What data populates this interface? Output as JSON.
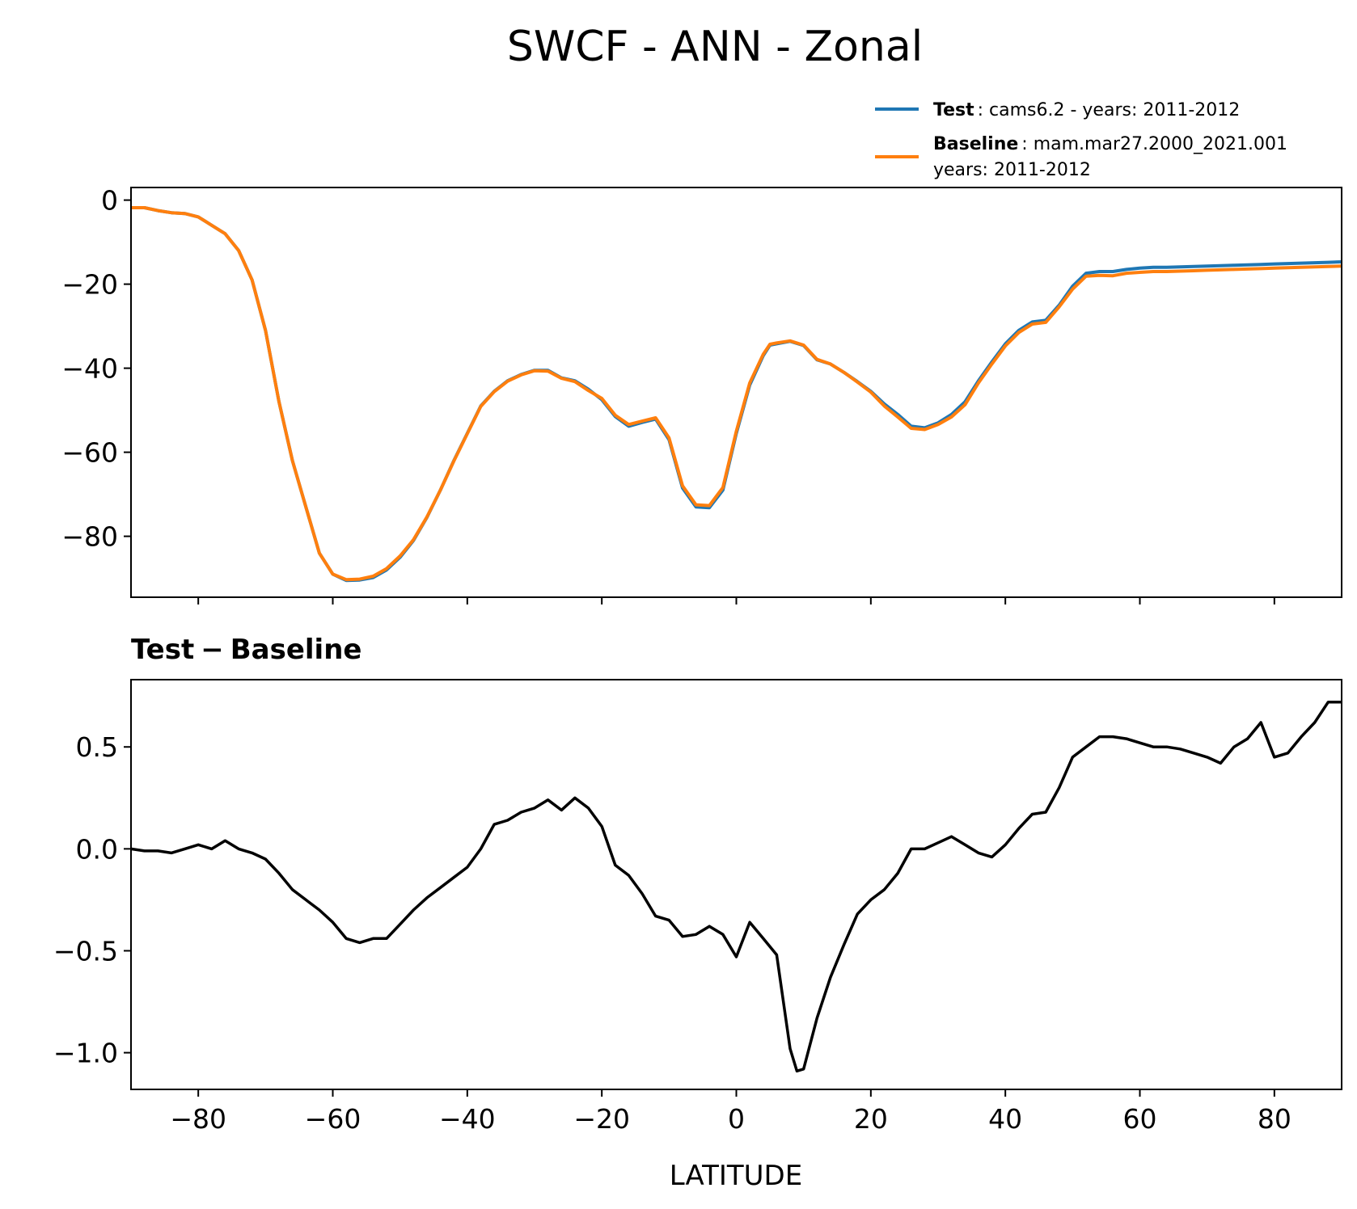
{
  "title": "SWCF - ANN - Zonal",
  "colors": {
    "test": "#1f77b4",
    "baseline": "#ff7f0e",
    "diff": "#000000"
  },
  "legend": {
    "test_name": "Test",
    "test_desc": ": cams6.2 - years: 2011-2012",
    "baseline_name": "Baseline",
    "baseline_desc": ": mam.mar27.2000_2021.001",
    "baseline_years": "years: 2011-2012"
  },
  "lower_title_left": "Test",
  "lower_title_sep": "−",
  "lower_title_right": "Baseline",
  "xlabel": "LATITUDE",
  "chart_data": [
    {
      "type": "line",
      "panel": "upper",
      "xlim": [
        -90,
        90
      ],
      "ylim": [
        -94.5,
        3
      ],
      "xticks": [
        -80,
        -60,
        -40,
        -20,
        0,
        20,
        40,
        60,
        80
      ],
      "yticks": [
        0,
        -20,
        -40,
        -60,
        -80
      ],
      "ytick_labels": [
        "0",
        "−20",
        "−40",
        "−60",
        "−80"
      ],
      "x": [
        -90,
        -88,
        -86,
        -84,
        -82,
        -80,
        -78,
        -76,
        -74,
        -72,
        -70,
        -68,
        -66,
        -64,
        -62,
        -60,
        -58,
        -56,
        -54,
        -52,
        -50,
        -48,
        -46,
        -44,
        -42,
        -40,
        -38,
        -36,
        -34,
        -32,
        -30,
        -28,
        -26,
        -24,
        -22,
        -20,
        -18,
        -16,
        -14,
        -12,
        -10,
        -8,
        -6,
        -4,
        -2,
        0,
        2,
        4,
        5,
        6,
        8,
        10,
        12,
        14,
        16,
        18,
        20,
        22,
        24,
        26,
        28,
        30,
        32,
        34,
        36,
        38,
        40,
        42,
        44,
        46,
        48,
        50,
        52,
        54,
        56,
        58,
        60,
        62,
        64,
        66,
        68,
        70,
        72,
        74,
        76,
        78,
        80,
        82,
        84,
        86,
        88,
        90
      ],
      "series": [
        {
          "name": "Test",
          "values": [
            -1.8,
            -1.8,
            -2.5,
            -3,
            -3.2,
            -4,
            -6,
            -8,
            -12,
            -19,
            -31,
            -48,
            -62,
            -73,
            -84,
            -89,
            -90.5,
            -90.4,
            -89.8,
            -88,
            -85,
            -81,
            -75.5,
            -69,
            -62,
            -55.5,
            -49,
            -45.5,
            -43,
            -41.5,
            -40.5,
            -40.5,
            -42.3,
            -43,
            -45,
            -47.5,
            -51.5,
            -53.8,
            -52.9,
            -52.1,
            -57,
            -68.5,
            -73,
            -73.2,
            -69,
            -55.5,
            -44,
            -37,
            -34.5,
            -34.2,
            -33.6,
            -34.6,
            -38,
            -39,
            -41,
            -43.2,
            -45.5,
            -48.5,
            -51,
            -53.8,
            -54.2,
            -53,
            -51,
            -48,
            -43,
            -38.5,
            -34.2,
            -31,
            -29,
            -28.6,
            -25,
            -20.5,
            -17.4,
            -17,
            -17,
            -16.5,
            -16.2,
            -16,
            -16,
            -15.9,
            -15.8,
            -15.7,
            -15.6,
            -15.5,
            -15.4,
            -15.3,
            -15.2,
            -15.1,
            -15,
            -14.9,
            -14.8,
            -14.7
          ]
        },
        {
          "name": "Baseline",
          "values": [
            -1.8,
            -1.8,
            -2.5,
            -3,
            -3.2,
            -4,
            -6,
            -8,
            -12,
            -19,
            -31,
            -48,
            -62,
            -73,
            -84,
            -89,
            -90.3,
            -90.2,
            -89.5,
            -87.7,
            -84.7,
            -80.8,
            -75.4,
            -69,
            -62.1,
            -55.6,
            -49.1,
            -45.6,
            -43.1,
            -41.6,
            -40.6,
            -40.7,
            -42.4,
            -43.2,
            -45.3,
            -47.2,
            -51.2,
            -53.4,
            -52.6,
            -51.8,
            -56.6,
            -68,
            -72.5,
            -72.7,
            -68.4,
            -55,
            -43.5,
            -36.7,
            -34.3,
            -34,
            -33.5,
            -34.5,
            -37.9,
            -39,
            -41,
            -43.3,
            -45.7,
            -49,
            -51.6,
            -54.3,
            -54.6,
            -53.4,
            -51.6,
            -48.7,
            -43.5,
            -39,
            -34.7,
            -31.5,
            -29.5,
            -29.1,
            -25.4,
            -21.2,
            -18.1,
            -17.9,
            -18,
            -17.4,
            -17.2,
            -17,
            -17,
            -16.9,
            -16.8,
            -16.7,
            -16.6,
            -16.5,
            -16.4,
            -16.3,
            -16.2,
            -16.1,
            -16,
            -15.9,
            -15.8,
            -15.7
          ]
        }
      ]
    },
    {
      "type": "line",
      "panel": "lower",
      "title": "Test − Baseline",
      "xlabel": "LATITUDE",
      "xlim": [
        -90,
        90
      ],
      "ylim": [
        -1.18,
        0.83
      ],
      "xticks": [
        -80,
        -60,
        -40,
        -20,
        0,
        20,
        40,
        60,
        80
      ],
      "xtick_labels": [
        "−80",
        "−60",
        "−40",
        "−20",
        "0",
        "20",
        "40",
        "60",
        "80"
      ],
      "yticks": [
        0.5,
        0.0,
        -0.5,
        -1.0
      ],
      "ytick_labels": [
        "0.5",
        "0.0",
        "−0.5",
        "−1.0"
      ],
      "x": [
        -90,
        -88,
        -86,
        -84,
        -82,
        -80,
        -78,
        -76,
        -74,
        -72,
        -70,
        -68,
        -66,
        -64,
        -62,
        -60,
        -58,
        -56,
        -54,
        -52,
        -50,
        -48,
        -46,
        -44,
        -42,
        -40,
        -38,
        -36,
        -34,
        -32,
        -30,
        -28,
        -26,
        -24,
        -22,
        -20,
        -18,
        -16,
        -14,
        -12,
        -10,
        -8,
        -6,
        -4,
        -2,
        0,
        2,
        4,
        6,
        8,
        9,
        10,
        12,
        14,
        16,
        18,
        20,
        22,
        24,
        26,
        28,
        30,
        32,
        34,
        36,
        38,
        40,
        42,
        44,
        46,
        48,
        50,
        52,
        54,
        56,
        58,
        60,
        62,
        64,
        66,
        68,
        70,
        72,
        74,
        76,
        78,
        80,
        82,
        84,
        86,
        88,
        90
      ],
      "series": [
        {
          "name": "Test − Baseline",
          "values": [
            0.0,
            -0.01,
            -0.01,
            -0.02,
            0.0,
            0.02,
            0.0,
            0.04,
            0.0,
            -0.02,
            -0.05,
            -0.12,
            -0.2,
            -0.25,
            -0.3,
            -0.36,
            -0.44,
            -0.46,
            -0.44,
            -0.44,
            -0.37,
            -0.3,
            -0.24,
            -0.19,
            -0.14,
            -0.09,
            0.0,
            0.12,
            0.14,
            0.18,
            0.2,
            0.24,
            0.19,
            0.25,
            0.2,
            0.11,
            -0.08,
            -0.13,
            -0.22,
            -0.33,
            -0.35,
            -0.43,
            -0.42,
            -0.38,
            -0.42,
            -0.53,
            -0.36,
            -0.44,
            -0.52,
            -0.98,
            -1.09,
            -1.08,
            -0.83,
            -0.63,
            -0.47,
            -0.32,
            -0.25,
            -0.2,
            -0.12,
            0.0,
            0.0,
            0.03,
            0.06,
            0.02,
            -0.02,
            -0.04,
            0.02,
            0.1,
            0.17,
            0.18,
            0.3,
            0.45,
            0.5,
            0.55,
            0.55,
            0.54,
            0.52,
            0.5,
            0.5,
            0.49,
            0.47,
            0.45,
            0.42,
            0.5,
            0.54,
            0.62,
            0.45,
            0.47,
            0.55,
            0.62,
            0.72,
            0.72
          ]
        }
      ]
    }
  ]
}
